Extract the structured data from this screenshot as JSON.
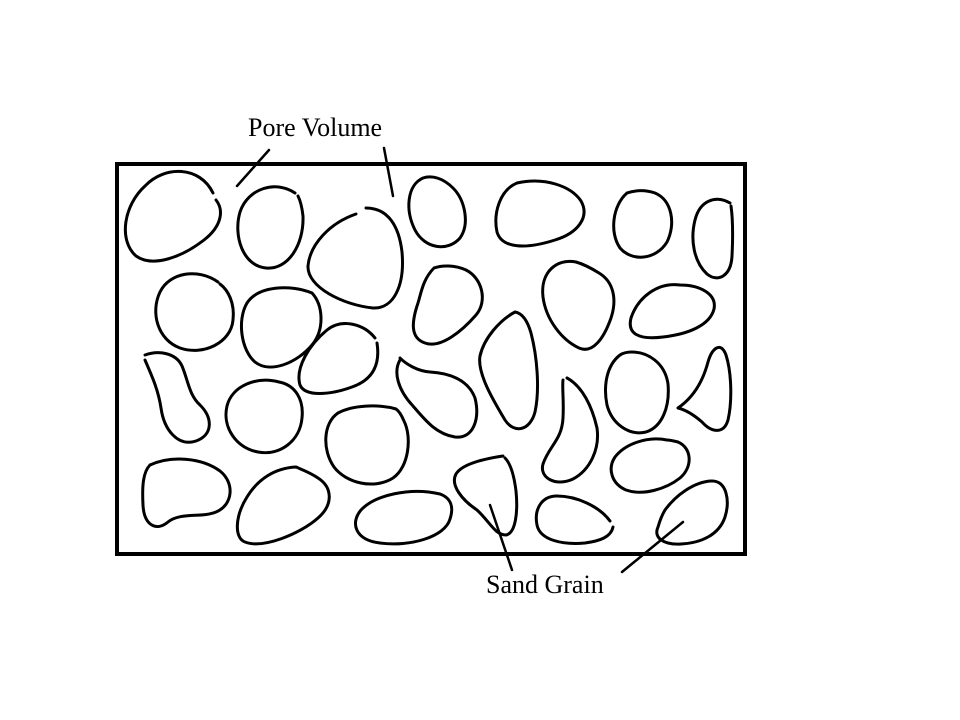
{
  "labels": {
    "pore_volume": "Pore Volume",
    "sand_grain": "Sand Grain"
  },
  "colors": {
    "ink": "#000000",
    "background": "#ffffff"
  }
}
